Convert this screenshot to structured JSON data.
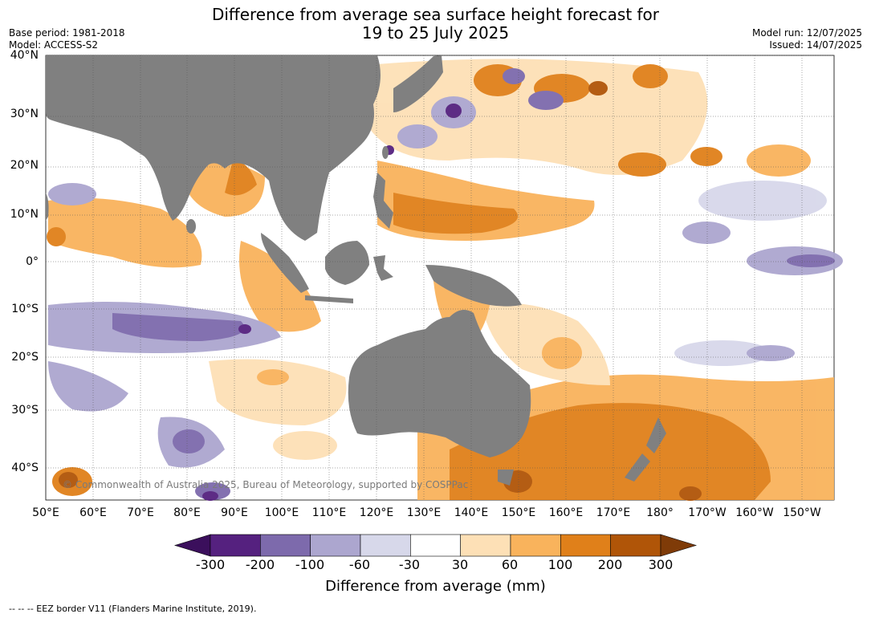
{
  "title": {
    "line1": "Difference from average sea surface height forecast for",
    "line2": "19 to 25 July 2025"
  },
  "meta": {
    "base_period": "Base period: 1981-2018",
    "model": "Model: ACCESS-S2",
    "model_run": "Model run: 12/07/2025",
    "issued": "Issued: 14/07/2025"
  },
  "lat_labels": [
    "40°N",
    "30°N",
    "20°N",
    "10°N",
    "0°",
    "10°S",
    "20°S",
    "30°S",
    "40°S"
  ],
  "lon_labels": [
    "50°E",
    "60°E",
    "70°E",
    "80°E",
    "90°E",
    "100°E",
    "110°E",
    "120°E",
    "130°E",
    "140°E",
    "150°E",
    "160°E",
    "170°E",
    "180°",
    "170°W",
    "160°W",
    "150°W"
  ],
  "copyright": "© Commonwealth of Australia 2025, Bureau of Meteorology, supported by COSPPac",
  "colorbar": {
    "title": "Difference from average (mm)",
    "ticks": [
      "-300",
      "-200",
      "-100",
      "-60",
      "-30",
      "30",
      "60",
      "100",
      "200",
      "300"
    ],
    "colors": [
      "#3b0f5c",
      "#55217f",
      "#7d6aac",
      "#aca6cf",
      "#d7d8ea",
      "#ffffff",
      "#fde0b6",
      "#f9b35c",
      "#e0801a",
      "#b05508",
      "#7f3b08"
    ]
  },
  "footnote": "--  --  -- EEZ border V11 (Flanders Marine Institute, 2019).",
  "colors": {
    "land": "#808080",
    "grid": "#555555"
  }
}
